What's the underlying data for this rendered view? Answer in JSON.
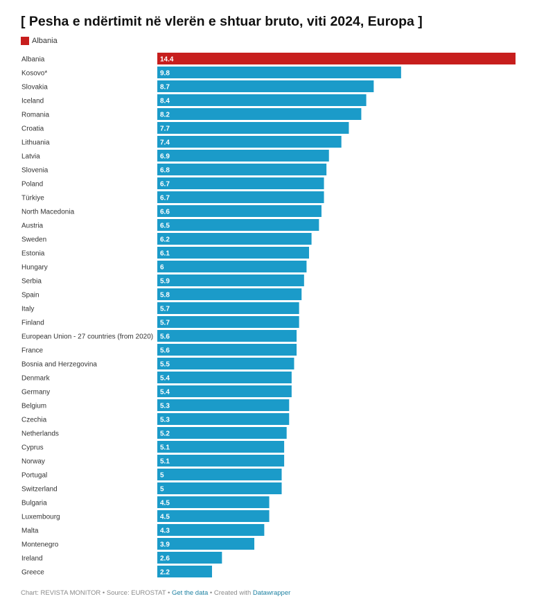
{
  "chart_data": {
    "type": "bar",
    "orientation": "horizontal",
    "title": "[ Pesha e ndërtimit në vlerën e shtuar bruto, viti 2024, Europa ]",
    "legend": [
      {
        "label": "Albania",
        "color": "#c71e1d"
      }
    ],
    "categories": [
      "Albania",
      "Kosovo*",
      "Slovakia",
      "Iceland",
      "Romania",
      "Croatia",
      "Lithuania",
      "Latvia",
      "Slovenia",
      "Poland",
      "Türkiye",
      "North Macedonia",
      "Austria",
      "Sweden",
      "Estonia",
      "Hungary",
      "Serbia",
      "Spain",
      "Italy",
      "Finland",
      "European Union - 27 countries (from 2020)",
      "France",
      "Bosnia and Herzegovina",
      "Denmark",
      "Germany",
      "Belgium",
      "Czechia",
      "Netherlands",
      "Cyprus",
      "Norway",
      "Portugal",
      "Switzerland",
      "Bulgaria",
      "Luxembourg",
      "Malta",
      "Montenegro",
      "Ireland",
      "Greece"
    ],
    "values": [
      14.4,
      9.8,
      8.7,
      8.4,
      8.2,
      7.7,
      7.4,
      6.9,
      6.8,
      6.7,
      6.7,
      6.6,
      6.5,
      6.2,
      6.1,
      6,
      5.9,
      5.8,
      5.7,
      5.7,
      5.6,
      5.6,
      5.5,
      5.4,
      5.4,
      5.3,
      5.3,
      5.2,
      5.1,
      5.1,
      5,
      5,
      4.5,
      4.5,
      4.3,
      3.9,
      2.6,
      2.2
    ],
    "value_labels": [
      "14.4",
      "9.8",
      "8.7",
      "8.4",
      "8.2",
      "7.7",
      "7.4",
      "6.9",
      "6.8",
      "6.7",
      "6.7",
      "6.6",
      "6.5",
      "6.2",
      "6.1",
      "6",
      "5.9",
      "5.8",
      "5.7",
      "5.7",
      "5.6",
      "5.6",
      "5.5",
      "5.4",
      "5.4",
      "5.3",
      "5.3",
      "5.2",
      "5.1",
      "5.1",
      "5",
      "5",
      "4.5",
      "4.5",
      "4.3",
      "3.9",
      "2.6",
      "2.2"
    ],
    "highlight": "Albania",
    "colors": {
      "highlight": "#c71e1d",
      "default": "#1b9bc9"
    },
    "xlim": [
      0,
      14.4
    ],
    "grid": false
  },
  "footer": {
    "prefix": "Chart: REVISTA MONITOR • Source: EUROSTAT • ",
    "get_data": "Get the data",
    "middle": " • Created with ",
    "tool": "Datawrapper"
  }
}
